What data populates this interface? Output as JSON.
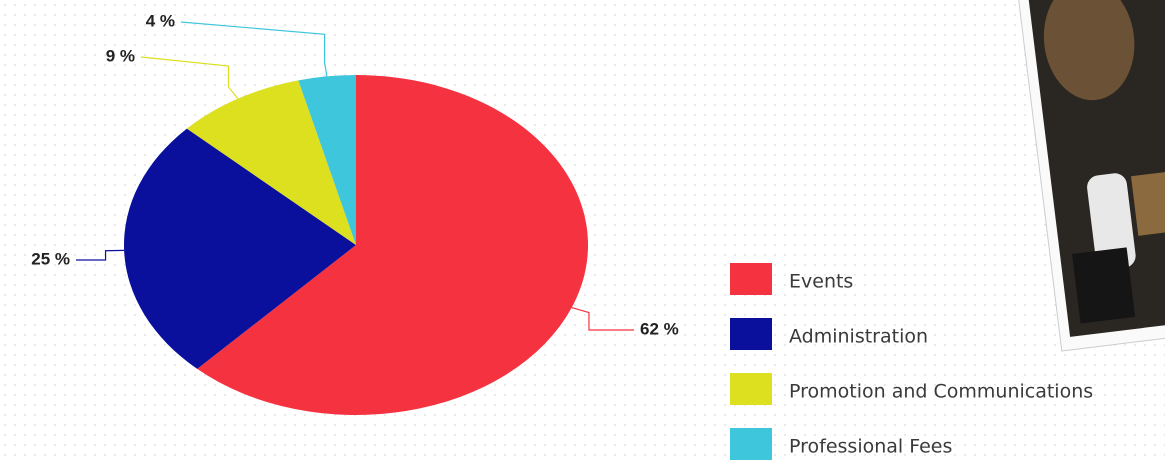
{
  "chart_data": {
    "type": "pie",
    "categories": [
      "Events",
      "Administration",
      "Promotion and Communications",
      "Professional Fees"
    ],
    "values": [
      62,
      25,
      9,
      4
    ],
    "value_labels": [
      "62 %",
      "25 %",
      "9 %",
      "4 %"
    ],
    "colors": [
      "#f5323f",
      "#0a0f9c",
      "#dde01f",
      "#3ec6dd"
    ],
    "legend": "right"
  }
}
